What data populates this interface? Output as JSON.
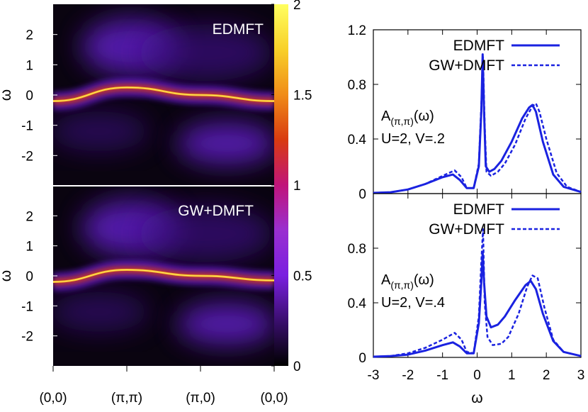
{
  "chart_data": [
    {
      "type": "heatmap",
      "panel": "top-left",
      "inset_label": "EDMFT",
      "ylabel": "ω",
      "xticks": [
        "(0,0)",
        "(π,π)",
        "(π,0)",
        "(0,0)"
      ],
      "ylim": [
        -3,
        3
      ],
      "yticks": [
        -2,
        -1,
        0,
        1,
        2
      ],
      "band_center_omega": [
        -0.2,
        0.25,
        0.0,
        -0.2
      ],
      "upper_hubbard_peak": {
        "k": "(π,π)",
        "omega": 1.6
      },
      "lower_hubbard_peak": {
        "k": "(π,0)-(0,0)",
        "omega": -1.6
      }
    },
    {
      "type": "heatmap",
      "panel": "bottom-left",
      "inset_label": "GW+DMFT",
      "ylabel": "ω",
      "xticks": [
        "(0,0)",
        "(π,π)",
        "(π,0)",
        "(0,0)"
      ],
      "ylim": [
        -3,
        3
      ],
      "yticks": [
        -2,
        -1,
        0,
        1,
        2
      ],
      "band_center_omega": [
        -0.2,
        0.2,
        0.0,
        -0.15
      ],
      "upper_hubbard_peak": {
        "k": "(π,π)",
        "omega": 1.6
      },
      "lower_hubbard_peak": {
        "k": "(π,0)-(0,0)",
        "omega": -1.6
      }
    },
    {
      "type": "colorbar",
      "range": [
        0,
        2
      ],
      "tick_labels": [
        "2",
        "1.5",
        "1",
        "0.5",
        "0"
      ],
      "colors": [
        "#000000",
        "#3a0e6e",
        "#7a1fe0",
        "#9a2fd0",
        "#c0157a",
        "#d83a10",
        "#f08c18",
        "#f8d028",
        "#ffff60"
      ]
    },
    {
      "type": "line",
      "panel": "top-right",
      "annotation": [
        "A(π,π)(ω)",
        "U=2, V=.2"
      ],
      "ylim": [
        0,
        1.2
      ],
      "yticks": [
        "0",
        "0.4",
        "0.8",
        "1.2"
      ],
      "xlim": [
        -3,
        3
      ],
      "legend": "top-right",
      "series": [
        {
          "name": "EDMFT",
          "style": "solid",
          "x": [
            -3,
            -2.5,
            -2,
            -1.5,
            -1,
            -0.7,
            -0.5,
            -0.3,
            -0.1,
            0.05,
            0.12,
            0.16,
            0.2,
            0.25,
            0.35,
            0.5,
            0.7,
            1.0,
            1.3,
            1.5,
            1.6,
            1.7,
            1.9,
            2.2,
            2.5,
            3.0
          ],
          "y": [
            0.005,
            0.01,
            0.03,
            0.07,
            0.12,
            0.14,
            0.1,
            0.04,
            0.04,
            0.2,
            0.6,
            1.02,
            0.6,
            0.2,
            0.16,
            0.18,
            0.24,
            0.38,
            0.55,
            0.63,
            0.65,
            0.6,
            0.38,
            0.14,
            0.05,
            0.012
          ]
        },
        {
          "name": "GW+DMFT",
          "style": "dashed",
          "x": [
            -3,
            -2.5,
            -2,
            -1.5,
            -1,
            -0.65,
            -0.45,
            -0.3,
            -0.1,
            0.05,
            0.12,
            0.17,
            0.22,
            0.27,
            0.4,
            0.6,
            0.8,
            1.1,
            1.4,
            1.6,
            1.7,
            1.8,
            2.0,
            2.3,
            2.6,
            3.0
          ],
          "y": [
            0.005,
            0.01,
            0.03,
            0.07,
            0.13,
            0.17,
            0.12,
            0.04,
            0.04,
            0.22,
            0.65,
            1.0,
            0.5,
            0.16,
            0.13,
            0.16,
            0.22,
            0.36,
            0.55,
            0.64,
            0.66,
            0.6,
            0.4,
            0.15,
            0.05,
            0.012
          ]
        }
      ]
    },
    {
      "type": "line",
      "panel": "bottom-right",
      "annotation": [
        "A(π,π)(ω)",
        "U=2, V=.4"
      ],
      "ylim": [
        0,
        1.2
      ],
      "yticks": [
        "0",
        "0.4",
        "0.8"
      ],
      "xlim": [
        -3,
        3
      ],
      "xticks": [
        "-3",
        "-2",
        "-1",
        "0",
        "1",
        "2",
        "3"
      ],
      "xlabel": "ω",
      "legend": "top-right",
      "series": [
        {
          "name": "EDMFT",
          "style": "solid",
          "x": [
            -3,
            -2.5,
            -2,
            -1.5,
            -1,
            -0.7,
            -0.5,
            -0.3,
            -0.1,
            0.05,
            0.12,
            0.16,
            0.2,
            0.27,
            0.4,
            0.6,
            0.8,
            1.1,
            1.4,
            1.55,
            1.7,
            1.9,
            2.2,
            2.5,
            3.0
          ],
          "y": [
            0.005,
            0.01,
            0.02,
            0.05,
            0.09,
            0.11,
            0.08,
            0.03,
            0.03,
            0.25,
            0.55,
            0.77,
            0.55,
            0.3,
            0.22,
            0.24,
            0.3,
            0.42,
            0.53,
            0.56,
            0.5,
            0.32,
            0.12,
            0.04,
            0.01
          ]
        },
        {
          "name": "GW+DMFT",
          "style": "dashed",
          "x": [
            -3,
            -2.5,
            -2,
            -1.5,
            -1,
            -0.65,
            -0.45,
            -0.3,
            -0.1,
            0.05,
            0.12,
            0.17,
            0.22,
            0.3,
            0.45,
            0.7,
            0.9,
            1.2,
            1.45,
            1.6,
            1.75,
            1.95,
            2.2,
            2.5,
            3.0
          ],
          "y": [
            0.005,
            0.01,
            0.03,
            0.07,
            0.13,
            0.18,
            0.13,
            0.04,
            0.03,
            0.3,
            0.7,
            0.94,
            0.4,
            0.15,
            0.09,
            0.1,
            0.15,
            0.32,
            0.52,
            0.6,
            0.58,
            0.36,
            0.13,
            0.04,
            0.01
          ]
        }
      ]
    }
  ]
}
